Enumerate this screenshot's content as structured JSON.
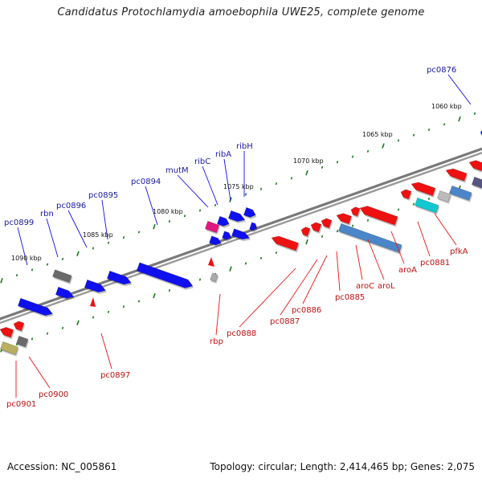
{
  "title": "Candidatus Protochlamydia amoebophila UWE25, complete genome",
  "footer": {
    "accession": "Accession: NC_005861",
    "topology": "Topology: circular; Length: 2,414,465 bp; Genes: 2,075"
  },
  "colors": {
    "backbone": "#7a7a7a",
    "forward_gene": "#1010ee",
    "reverse_gene": "#ee1111",
    "forward_label": "#1a1aa8",
    "reverse_label": "#c01010",
    "tick": "#1a7a1a",
    "rRNA_magenta": "#e0187f",
    "steel_blue": "#4a86c8",
    "cyan": "#12c8d0",
    "grey_gene": "#6a6a6a",
    "olive_gene": "#b8b060"
  },
  "scale_labels": [
    "1060 kbp",
    "1065 kbp",
    "1070 kbp",
    "1075 kbp",
    "1080 kbp",
    "1085 kbp",
    "1090 kbp"
  ],
  "forward_labels": [
    "pc0876",
    "ribH",
    "ribA",
    "ribC",
    "mutM",
    "pc0894",
    "pc0895",
    "pc0896",
    "rbn",
    "pc0899"
  ],
  "reverse_labels": [
    "pfkA",
    "pc0881",
    "aroA",
    "aroL",
    "aroC",
    "pc0885",
    "pc0886",
    "pc0887",
    "pc0888",
    "rbp",
    "pc0897",
    "pc0900",
    "pc0901"
  ]
}
